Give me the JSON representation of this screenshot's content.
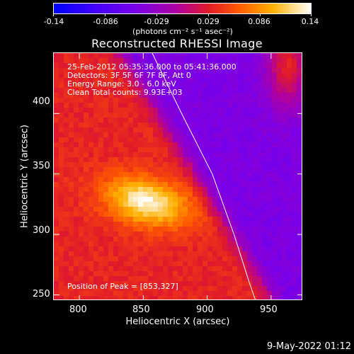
{
  "colorbar": {
    "ticks": [
      "-0.14",
      "-0.086",
      "-0.029",
      "0.029",
      "0.086",
      "0.14"
    ],
    "unit": "(photons cm⁻² s⁻¹ asec⁻²)",
    "colors": [
      "#0000ff",
      "#7a00e8",
      "#e01a2a",
      "#ff5a00",
      "#ffb000",
      "#ffffff"
    ]
  },
  "chart_data": {
    "type": "heatmap",
    "title": "Reconstructed RHESSI Image",
    "xlabel": "Heliocentric X (arcsec)",
    "ylabel": "Heliocentric Y (arcsec)",
    "xlim": [
      780,
      975
    ],
    "ylim": [
      245,
      450
    ],
    "xticks": [
      800,
      850,
      900,
      950
    ],
    "yticks": [
      250,
      300,
      350,
      400
    ],
    "peak": [
      853,
      327
    ],
    "limb_curve": [
      [
        857,
        450
      ],
      [
        880,
        400
      ],
      [
        904,
        350
      ],
      [
        921,
        300
      ],
      [
        933,
        260
      ],
      [
        938,
        245
      ]
    ],
    "annotations": [
      "25-Feb-2012 05:35:36.000 to 05:41:36.000",
      "Detectors: 3F 5F 6F 7F 8F, Att 0",
      "Energy Range: 3.0 - 6.0 keV",
      "Clean    Total counts: 9.93E+03"
    ],
    "peak_label": "Position of Peak = [853,327]"
  },
  "timestamp": "9-May-2022 01:12"
}
